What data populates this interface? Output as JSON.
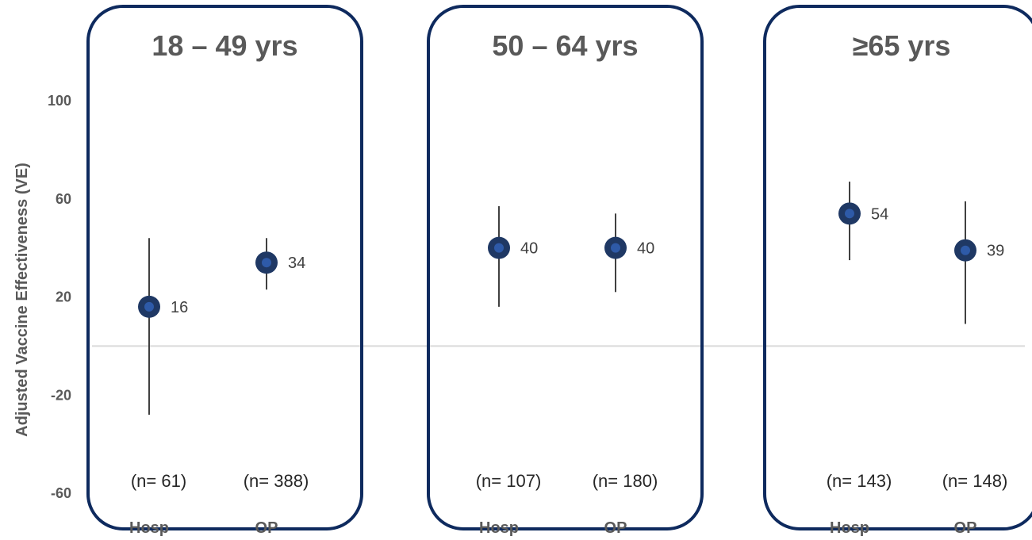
{
  "chart_data": {
    "type": "scatter",
    "ylabel": "Adjusted Vaccine Effectiveness (VE)",
    "y_ticks": [
      "100",
      "60",
      "20",
      "-20",
      "-60"
    ],
    "ylim": [
      -60,
      100
    ],
    "reference_line": 0,
    "colors": {
      "panel_border": "#0e2a5e",
      "marker_outer": "#1f3864",
      "marker_inner": "#2e5aa8",
      "error_bar": "#404040",
      "zero_line": "#d9d9d9",
      "text": "#595959"
    },
    "panels": [
      {
        "title": "18 – 49 yrs",
        "points": [
          {
            "category": "Hosp",
            "ve": 16,
            "ci_low": -28,
            "ci_high": 44,
            "n_label": "(n= 61)"
          },
          {
            "category": "OP",
            "ve": 34,
            "ci_low": 23,
            "ci_high": 44,
            "n_label": "(n= 388)"
          }
        ]
      },
      {
        "title": "50 – 64 yrs",
        "points": [
          {
            "category": "Hosp",
            "ve": 40,
            "ci_low": 16,
            "ci_high": 57,
            "n_label": "(n= 107)"
          },
          {
            "category": "OP",
            "ve": 40,
            "ci_low": 22,
            "ci_high": 54,
            "n_label": "(n= 180)"
          }
        ]
      },
      {
        "title": "≥65 yrs",
        "points": [
          {
            "category": "Hosp",
            "ve": 54,
            "ci_low": 35,
            "ci_high": 67,
            "n_label": "(n= 143)"
          },
          {
            "category": "OP",
            "ve": 39,
            "ci_low": 9,
            "ci_high": 59,
            "n_label": "(n= 148)"
          }
        ]
      }
    ]
  }
}
